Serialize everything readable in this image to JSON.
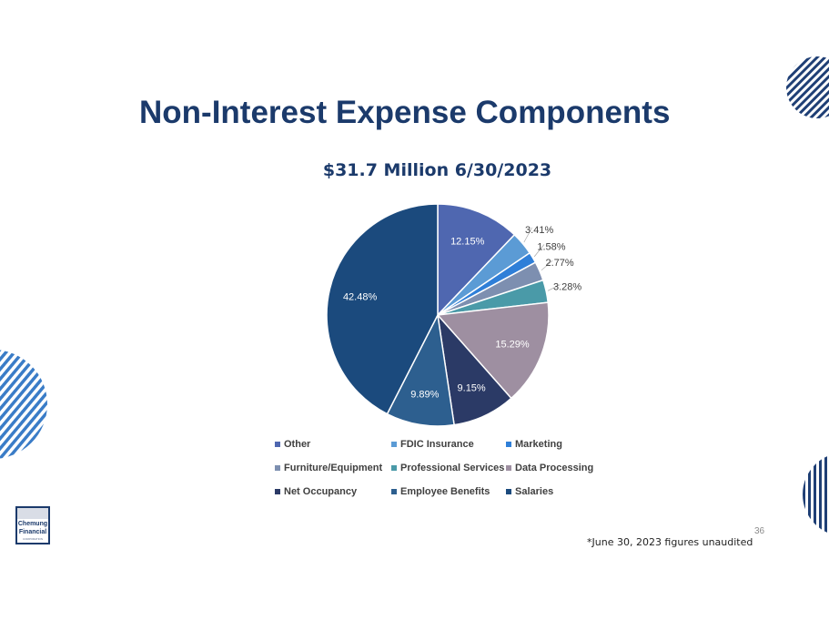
{
  "slide": {
    "title": "Non-Interest Expense Components",
    "page_number": "36",
    "footnote": "*June 30, 2023 figures unaudited",
    "logo_text_line1": "Chemung",
    "logo_text_line2": "Financial",
    "logo_text_line3": "CORPORATION"
  },
  "colors": {
    "title": "#1b3a6b",
    "stripe_dark": "#1f3f75",
    "stripe_light": "#3a7cc7"
  },
  "chart_data": {
    "type": "pie",
    "title": "$31.7 Million 6/30/2023",
    "start_angle_deg": 0,
    "direction": "clockwise",
    "slices": [
      {
        "name": "Other",
        "value": 12.15,
        "label": "12.15%",
        "color": "#4f67b0"
      },
      {
        "name": "FDIC Insurance",
        "value": 3.41,
        "label": "3.41%",
        "color": "#5b9bd5"
      },
      {
        "name": "Marketing",
        "value": 1.58,
        "label": "1.58%",
        "color": "#2f7fd8"
      },
      {
        "name": "Furniture/Equipment",
        "value": 2.77,
        "label": "2.77%",
        "color": "#7d8fb0"
      },
      {
        "name": "Professional Services",
        "value": 3.28,
        "label": "3.28%",
        "color": "#4a9aa8"
      },
      {
        "name": "Data Processing",
        "value": 15.29,
        "label": "15.29%",
        "color": "#9e8fa1"
      },
      {
        "name": "Net Occupancy",
        "value": 9.15,
        "label": "9.15%",
        "color": "#2b3a66"
      },
      {
        "name": "Employee Benefits",
        "value": 9.89,
        "label": "9.89%",
        "color": "#2d5f8f"
      },
      {
        "name": "Salaries",
        "value": 42.48,
        "label": "42.48%",
        "color": "#1b4a7d"
      }
    ],
    "legend": [
      "Other",
      "FDIC Insurance",
      "Marketing",
      "Furniture/Equipment",
      "Professional Services",
      "Data Processing",
      "Net Occupancy",
      "Employee Benefits",
      "Salaries"
    ],
    "legend_position": "bottom"
  }
}
